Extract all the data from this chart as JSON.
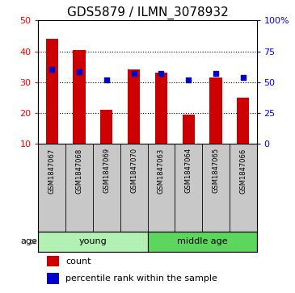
{
  "title": "GDS5879 / ILMN_3078932",
  "samples": [
    "GSM1847067",
    "GSM1847068",
    "GSM1847069",
    "GSM1847070",
    "GSM1847063",
    "GSM1847064",
    "GSM1847065",
    "GSM1847066"
  ],
  "counts": [
    44,
    40.5,
    21,
    34,
    33,
    19.5,
    31.5,
    25
  ],
  "percentile_ranks": [
    60,
    58,
    52,
    57,
    57,
    52,
    57,
    54
  ],
  "groups": [
    {
      "label": "young",
      "indices": [
        0,
        1,
        2,
        3
      ],
      "color": "#b3f0b3"
    },
    {
      "label": "middle age",
      "indices": [
        4,
        5,
        6,
        7
      ],
      "color": "#5cd65c"
    }
  ],
  "ylim_left": [
    10,
    50
  ],
  "ylim_right": [
    0,
    100
  ],
  "yticks_left": [
    10,
    20,
    30,
    40,
    50
  ],
  "yticks_right": [
    0,
    25,
    50,
    75,
    100
  ],
  "ytick_labels_right": [
    "0",
    "25",
    "50",
    "75",
    "100%"
  ],
  "bar_color": "#cc0000",
  "dot_color": "#0000cc",
  "bar_width": 0.45,
  "background_color": "#ffffff",
  "sample_box_color": "#c8c8c8",
  "label_count": "count",
  "label_percentile": "percentile rank within the sample",
  "age_label": "age",
  "title_fontsize": 11,
  "tick_fontsize": 8,
  "sample_fontsize": 6,
  "group_fontsize": 8,
  "legend_fontsize": 8
}
